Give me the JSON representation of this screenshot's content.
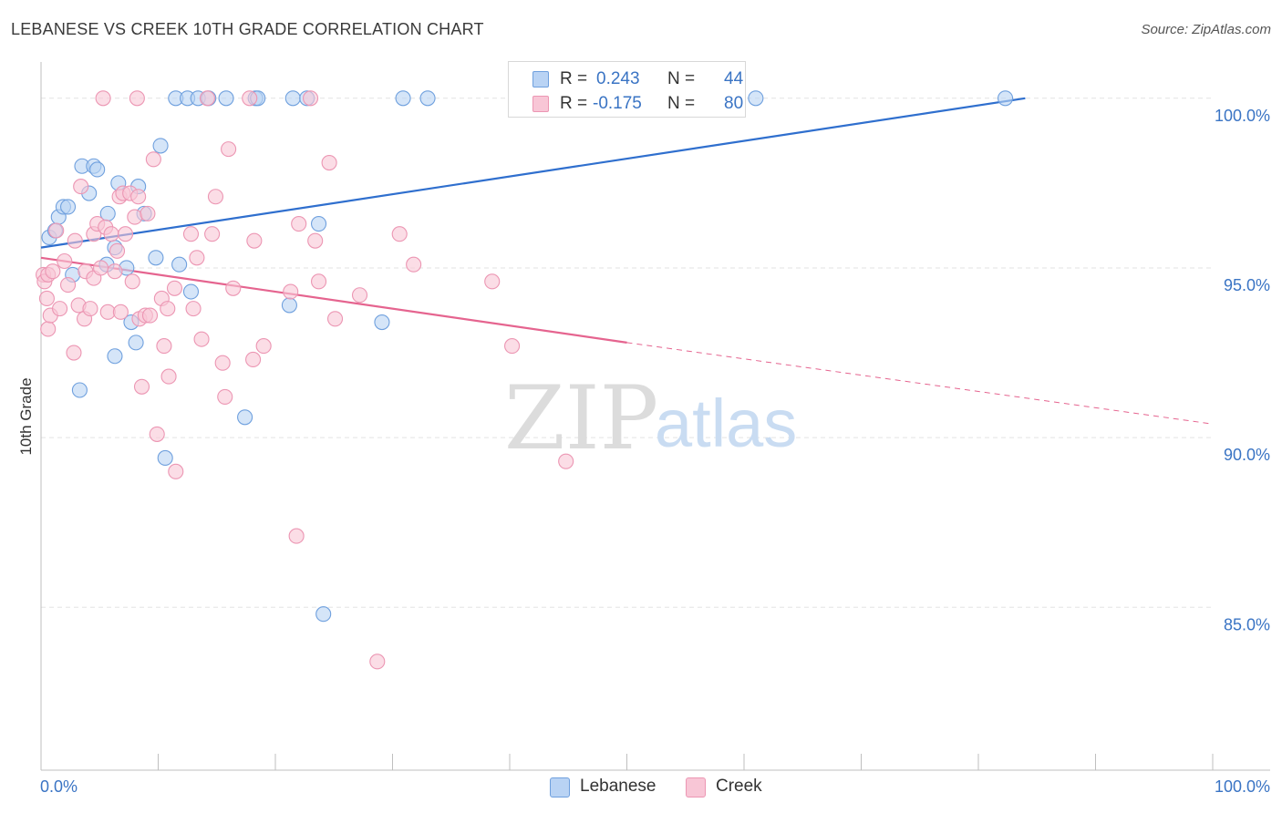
{
  "title": "LEBANESE VS CREEK 10TH GRADE CORRELATION CHART",
  "source": "Source: ZipAtlas.com",
  "watermark": {
    "zip": "ZIP",
    "atlas": "atlas"
  },
  "colors": {
    "blue_fill": "#b9d3f4",
    "blue_stroke": "#6fa0de",
    "blue_line": "#2f6fce",
    "pink_fill": "#f8c6d6",
    "pink_stroke": "#ec96b3",
    "pink_line": "#e5648f",
    "axis_text": "#3a74c4",
    "grid": "#e3e3e3"
  },
  "legend": {
    "rows": [
      {
        "r_label": "R =",
        "r_value": "0.243",
        "n_label": "N =",
        "n_value": "44"
      },
      {
        "r_label": "R =",
        "r_value": "-0.175",
        "n_label": "N =",
        "n_value": "80"
      }
    ]
  },
  "bottom_legend": {
    "lebanese": "Lebanese",
    "creek": "Creek"
  },
  "chart_data": {
    "type": "scatter",
    "title": "LEBANESE VS CREEK 10TH GRADE CORRELATION CHART",
    "xlabel": "",
    "ylabel": "10th Grade",
    "xlim": [
      0,
      100
    ],
    "ylim": [
      80.2,
      100.8
    ],
    "x_tick_labels": [
      "0.0%",
      "100.0%"
    ],
    "y_ticks": [
      85,
      90,
      95,
      100
    ],
    "y_tick_labels": [
      "85.0%",
      "90.0%",
      "95.0%",
      "100.0%"
    ],
    "grid": true,
    "legend_position": "top-center",
    "series": [
      {
        "name": "Lebanese",
        "trend": {
          "x0": 0,
          "y0": 95.6,
          "x1": 84,
          "y1": 100.0,
          "dashed_to": null
        },
        "points": [
          [
            0.7,
            95.9
          ],
          [
            1.2,
            96.1
          ],
          [
            1.5,
            96.5
          ],
          [
            1.9,
            96.8
          ],
          [
            2.3,
            96.8
          ],
          [
            2.7,
            94.8
          ],
          [
            3.3,
            91.4
          ],
          [
            3.5,
            98.0
          ],
          [
            4.1,
            97.2
          ],
          [
            4.5,
            98.0
          ],
          [
            4.8,
            97.9
          ],
          [
            5.6,
            95.1
          ],
          [
            5.7,
            96.6
          ],
          [
            6.3,
            95.6
          ],
          [
            6.6,
            97.5
          ],
          [
            7.3,
            95.0
          ],
          [
            7.7,
            93.4
          ],
          [
            8.1,
            92.8
          ],
          [
            8.3,
            97.4
          ],
          [
            8.8,
            96.6
          ],
          [
            9.8,
            95.3
          ],
          [
            10.2,
            98.6
          ],
          [
            10.6,
            89.4
          ],
          [
            11.5,
            100.0
          ],
          [
            11.8,
            95.1
          ],
          [
            12.5,
            100.0
          ],
          [
            12.8,
            94.3
          ],
          [
            13.4,
            100.0
          ],
          [
            14.3,
            100.0
          ],
          [
            15.8,
            100.0
          ],
          [
            17.4,
            90.6
          ],
          [
            18.3,
            100.0
          ],
          [
            18.5,
            100.0
          ],
          [
            21.2,
            93.9
          ],
          [
            21.5,
            100.0
          ],
          [
            22.7,
            100.0
          ],
          [
            23.7,
            96.3
          ],
          [
            24.1,
            84.8
          ],
          [
            29.1,
            93.4
          ],
          [
            30.9,
            100.0
          ],
          [
            33.0,
            100.0
          ],
          [
            61.0,
            100.0
          ],
          [
            82.3,
            100.0
          ],
          [
            6.3,
            92.4
          ]
        ]
      },
      {
        "name": "Creek",
        "trend": {
          "x0": 0,
          "y0": 95.3,
          "x1": 50,
          "y1": 92.8,
          "dashed_to": {
            "x": 100,
            "y": 90.4
          }
        },
        "points": [
          [
            0.2,
            94.8
          ],
          [
            0.3,
            94.6
          ],
          [
            0.5,
            94.1
          ],
          [
            0.6,
            94.8
          ],
          [
            0.6,
            93.2
          ],
          [
            0.8,
            93.6
          ],
          [
            1.0,
            94.9
          ],
          [
            1.3,
            96.1
          ],
          [
            1.6,
            93.8
          ],
          [
            2.0,
            95.2
          ],
          [
            2.3,
            94.5
          ],
          [
            2.8,
            92.5
          ],
          [
            2.9,
            95.8
          ],
          [
            3.2,
            93.9
          ],
          [
            3.4,
            97.4
          ],
          [
            3.7,
            93.5
          ],
          [
            3.8,
            94.9
          ],
          [
            4.2,
            93.8
          ],
          [
            4.5,
            96.0
          ],
          [
            4.5,
            94.7
          ],
          [
            4.8,
            96.3
          ],
          [
            5.1,
            95.0
          ],
          [
            5.3,
            100.0
          ],
          [
            5.5,
            96.2
          ],
          [
            5.7,
            93.7
          ],
          [
            6.0,
            96.0
          ],
          [
            6.3,
            94.9
          ],
          [
            6.5,
            95.5
          ],
          [
            6.7,
            97.1
          ],
          [
            6.8,
            93.7
          ],
          [
            7.0,
            97.2
          ],
          [
            7.2,
            96.0
          ],
          [
            7.6,
            97.2
          ],
          [
            7.8,
            94.6
          ],
          [
            8.0,
            96.5
          ],
          [
            8.3,
            97.1
          ],
          [
            8.4,
            93.5
          ],
          [
            8.6,
            91.5
          ],
          [
            8.9,
            93.6
          ],
          [
            9.1,
            96.6
          ],
          [
            9.3,
            93.6
          ],
          [
            9.6,
            98.2
          ],
          [
            9.9,
            90.1
          ],
          [
            10.3,
            94.1
          ],
          [
            10.5,
            92.7
          ],
          [
            10.8,
            93.8
          ],
          [
            10.9,
            91.8
          ],
          [
            11.4,
            94.4
          ],
          [
            11.5,
            89.0
          ],
          [
            12.8,
            96.0
          ],
          [
            13.0,
            93.8
          ],
          [
            13.3,
            95.3
          ],
          [
            13.7,
            92.9
          ],
          [
            14.2,
            100.0
          ],
          [
            14.6,
            96.0
          ],
          [
            14.9,
            97.1
          ],
          [
            15.5,
            92.2
          ],
          [
            15.7,
            91.2
          ],
          [
            16.0,
            98.5
          ],
          [
            16.4,
            94.4
          ],
          [
            17.8,
            100.0
          ],
          [
            18.1,
            92.3
          ],
          [
            18.2,
            95.8
          ],
          [
            19.0,
            92.7
          ],
          [
            21.3,
            94.3
          ],
          [
            21.8,
            87.1
          ],
          [
            22.0,
            96.3
          ],
          [
            23.0,
            100.0
          ],
          [
            23.4,
            95.8
          ],
          [
            23.7,
            94.6
          ],
          [
            24.6,
            98.1
          ],
          [
            25.1,
            93.5
          ],
          [
            27.2,
            94.2
          ],
          [
            28.7,
            83.4
          ],
          [
            30.6,
            96.0
          ],
          [
            31.8,
            95.1
          ],
          [
            38.5,
            94.6
          ],
          [
            40.2,
            92.7
          ],
          [
            44.8,
            89.3
          ],
          [
            8.2,
            100.0
          ]
        ]
      }
    ]
  }
}
